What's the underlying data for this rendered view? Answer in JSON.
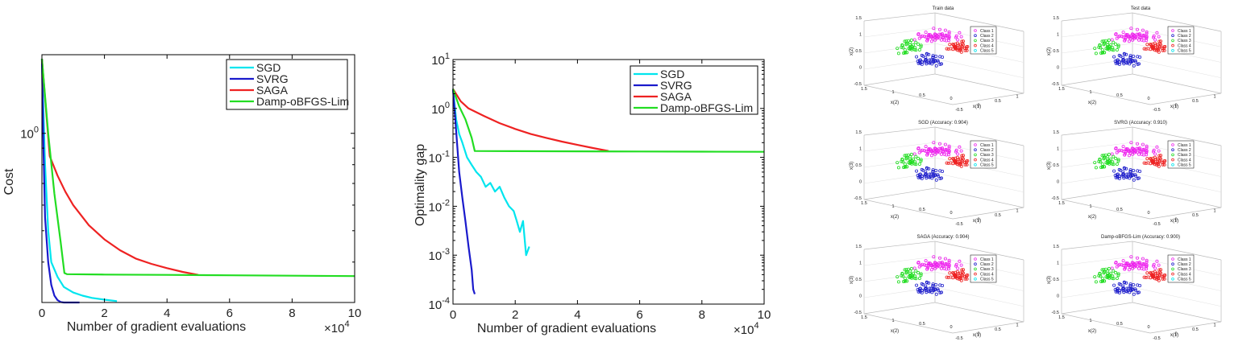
{
  "figure": {
    "x10_text": "×10",
    "x10_exp": "4"
  },
  "chart_data": [
    {
      "type": "line",
      "id": "cost",
      "xlabel": "Number of gradient evaluations",
      "ylabel": "Cost",
      "xlim": [
        0,
        10
      ],
      "x_unit_multiplier": "×10^4",
      "y_scale": "log",
      "ylim": [
        0.3,
        1.75
      ],
      "xticks": [
        "0",
        "2",
        "4",
        "6",
        "8",
        "10"
      ],
      "yticks": [
        {
          "value": 1,
          "base": "10",
          "exp": "0"
        }
      ],
      "grid": false,
      "legend": "top-right",
      "series": [
        {
          "name": "SGD",
          "color": "#00e5ee",
          "x": [
            0,
            0.1,
            0.2,
            0.3,
            0.5,
            0.7,
            1.0,
            1.3,
            1.6,
            2.0,
            2.4
          ],
          "y": [
            1.7,
            0.8,
            0.5,
            0.4,
            0.36,
            0.335,
            0.322,
            0.315,
            0.31,
            0.306,
            0.303
          ]
        },
        {
          "name": "SVRG",
          "color": "#1a1acc",
          "x": [
            0,
            0.05,
            0.1,
            0.2,
            0.3,
            0.4,
            0.5,
            0.6,
            0.7,
            1.2
          ],
          "y": [
            1.7,
            0.9,
            0.55,
            0.4,
            0.34,
            0.315,
            0.305,
            0.301,
            0.3,
            0.3
          ]
        },
        {
          "name": "SAGA",
          "color": "#ee2222",
          "x": [
            0,
            0.25,
            0.5,
            0.75,
            1.0,
            1.5,
            2.0,
            2.5,
            3.0,
            3.5,
            4.0,
            4.5,
            5.0
          ],
          "y": [
            1.7,
            0.85,
            0.74,
            0.66,
            0.6,
            0.52,
            0.47,
            0.435,
            0.41,
            0.395,
            0.383,
            0.373,
            0.365
          ]
        },
        {
          "name": "Damp-oBFGS-Lim",
          "color": "#22dd22",
          "x": [
            0,
            0.2,
            0.4,
            0.6,
            0.72,
            0.8,
            2,
            4,
            6,
            8,
            10
          ],
          "y": [
            1.7,
            1.0,
            0.65,
            0.46,
            0.37,
            0.367,
            0.366,
            0.365,
            0.364,
            0.363,
            0.362
          ]
        }
      ]
    },
    {
      "type": "line",
      "id": "optimality-gap",
      "xlabel": "Number of gradient evaluations",
      "ylabel": "Optimality gap",
      "xlim": [
        0,
        10
      ],
      "x_unit_multiplier": "×10^4",
      "y_scale": "log",
      "ylim": [
        0.0001,
        10
      ],
      "xticks": [
        "0",
        "2",
        "4",
        "6",
        "8",
        "10"
      ],
      "yticks": [
        {
          "value": 10,
          "base": "10",
          "exp": "1"
        },
        {
          "value": 1,
          "base": "10",
          "exp": "0"
        },
        {
          "value": 0.1,
          "base": "10",
          "exp": "-1"
        },
        {
          "value": 0.01,
          "base": "10",
          "exp": "-2"
        },
        {
          "value": 0.001,
          "base": "10",
          "exp": "-3"
        },
        {
          "value": 0.0001,
          "base": "10",
          "exp": "-4"
        }
      ],
      "grid": false,
      "legend": "top-right",
      "series": [
        {
          "name": "SGD",
          "color": "#00e5ee",
          "x": [
            0,
            0.1,
            0.2,
            0.3,
            0.45,
            0.6,
            0.75,
            0.9,
            1.05,
            1.2,
            1.35,
            1.5,
            1.65,
            1.8,
            1.95,
            2.05,
            2.15,
            2.25,
            2.35,
            2.45
          ],
          "y": [
            2.5,
            0.6,
            0.3,
            0.2,
            0.1,
            0.07,
            0.05,
            0.04,
            0.025,
            0.03,
            0.02,
            0.025,
            0.015,
            0.01,
            0.008,
            0.005,
            0.003,
            0.005,
            0.001,
            0.0015
          ]
        },
        {
          "name": "SVRG",
          "color": "#1a1acc",
          "x": [
            0,
            0.1,
            0.2,
            0.3,
            0.4,
            0.5,
            0.6,
            0.65,
            0.7
          ],
          "y": [
            2.5,
            0.35,
            0.05,
            0.015,
            0.005,
            0.0015,
            0.0005,
            0.0002,
            0.00016
          ]
        },
        {
          "name": "SAGA",
          "color": "#ee2222",
          "x": [
            0,
            0.25,
            0.5,
            1,
            1.5,
            2,
            2.5,
            3,
            3.5,
            4,
            4.5,
            5
          ],
          "y": [
            2.5,
            1.4,
            1.0,
            0.7,
            0.5,
            0.38,
            0.3,
            0.25,
            0.21,
            0.18,
            0.155,
            0.135
          ]
        },
        {
          "name": "Damp-oBFGS-Lim",
          "color": "#22dd22",
          "x": [
            0,
            0.2,
            0.4,
            0.6,
            0.7,
            2,
            4,
            6,
            8,
            10
          ],
          "y": [
            2.5,
            1.1,
            0.6,
            0.25,
            0.135,
            0.134,
            0.133,
            0.132,
            0.131,
            0.13
          ]
        }
      ]
    },
    {
      "type": "scatter",
      "id": "scatter-grid",
      "legend": "top-right",
      "legend_entries": [
        {
          "name": "Class 1",
          "color": "#ee22ee"
        },
        {
          "name": "Class 2",
          "color": "#2222cc"
        },
        {
          "name": "Class 3",
          "color": "#22dd22"
        },
        {
          "name": "Class 4",
          "color": "#ee2222"
        },
        {
          "name": "Class 5",
          "color": "#00e5ee"
        }
      ],
      "x_ticks": [
        "-0.5",
        "0",
        "0.5",
        "1"
      ],
      "y_ticks": [
        "1.5",
        "1",
        "0.5",
        "0"
      ],
      "z_ticks": [
        "1.5",
        "1",
        "0.5",
        "0",
        "-0.5"
      ],
      "panels": [
        {
          "title": "Train data",
          "zlabel": "x(2)",
          "xlabel": "x(1)",
          "ylabel": "x(2)"
        },
        {
          "title": "Test data",
          "zlabel": "x(2)",
          "xlabel": "x(1)",
          "ylabel": "x(2)"
        },
        {
          "title": "SGD (Accuracy: 0.904)",
          "zlabel": "x(3)",
          "xlabel": "x(1)",
          "ylabel": "x(2)"
        },
        {
          "title": "SVRG (Accuracy: 0.910)",
          "zlabel": "x(3)",
          "xlabel": "x(1)",
          "ylabel": "x(2)"
        },
        {
          "title": "SAGA (Accuracy: 0.904)",
          "zlabel": "x(3)",
          "xlabel": "x(1)",
          "ylabel": "x(2)"
        },
        {
          "title": "Damp-oBFGS-Lim (Accuracy: 0.900)",
          "zlabel": "x(3)",
          "xlabel": "x(1)",
          "ylabel": "x(2)"
        }
      ]
    }
  ]
}
